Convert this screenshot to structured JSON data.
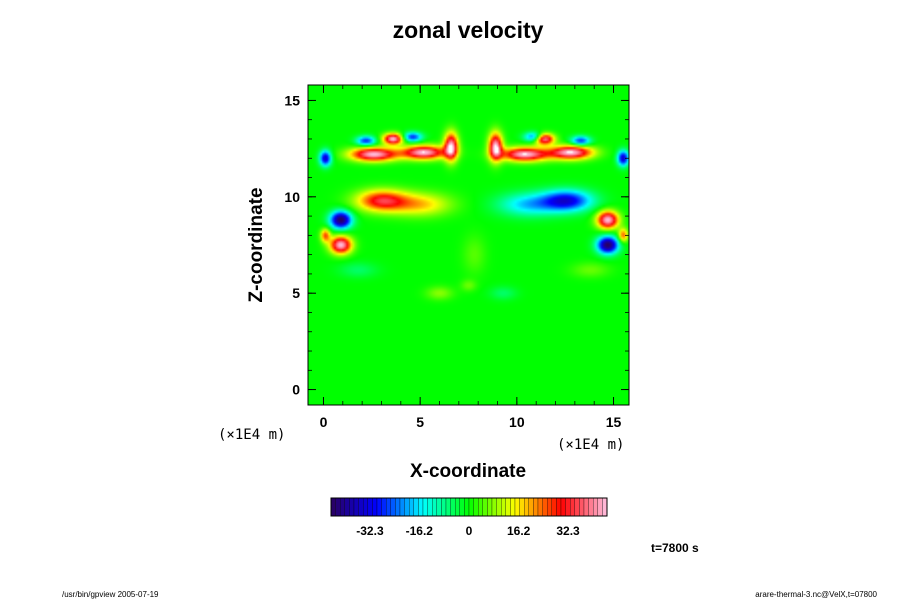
{
  "chart_data": {
    "type": "heatmap",
    "title": "zonal velocity",
    "xlabel": "X-coordinate",
    "ylabel": "Z-coordinate",
    "x_unit_lower": "(×1E4 m)",
    "x_unit_upper": "(×1E4 m)",
    "xlim": [
      -0.8,
      15.8
    ],
    "ylim": [
      -0.8,
      15.8
    ],
    "xticks": [
      0,
      5,
      10,
      15
    ],
    "yticks": [
      0,
      5,
      10,
      15
    ],
    "xtick_labels": [
      "0",
      "5",
      "10",
      "15"
    ],
    "ytick_labels": [
      "0",
      "5",
      "10",
      "15"
    ],
    "background_value": 0,
    "features": [
      {
        "x": 3.0,
        "z": 9.8,
        "value": 32,
        "sx": 1.3,
        "sz": 0.55
      },
      {
        "x": 5.0,
        "z": 9.6,
        "value": 18,
        "sx": 1.6,
        "sz": 0.6
      },
      {
        "x": 12.6,
        "z": 9.8,
        "value": -32,
        "sx": 1.3,
        "sz": 0.55
      },
      {
        "x": 10.6,
        "z": 9.6,
        "value": -18,
        "sx": 1.6,
        "sz": 0.6
      },
      {
        "x": 0.9,
        "z": 8.8,
        "value": -45,
        "sx": 0.55,
        "sz": 0.45
      },
      {
        "x": 0.9,
        "z": 7.5,
        "value": 45,
        "sx": 0.55,
        "sz": 0.45
      },
      {
        "x": 14.7,
        "z": 8.8,
        "value": 45,
        "sx": 0.55,
        "sz": 0.45
      },
      {
        "x": 14.7,
        "z": 7.5,
        "value": -45,
        "sx": 0.55,
        "sz": 0.45
      },
      {
        "x": 2.6,
        "z": 12.2,
        "value": 45,
        "sx": 1.2,
        "sz": 0.35
      },
      {
        "x": 5.2,
        "z": 12.3,
        "value": 45,
        "sx": 1.1,
        "sz": 0.35
      },
      {
        "x": 3.6,
        "z": 13.0,
        "value": 45,
        "sx": 0.5,
        "sz": 0.28
      },
      {
        "x": 6.6,
        "z": 12.6,
        "value": 45,
        "sx": 0.35,
        "sz": 0.7
      },
      {
        "x": 2.2,
        "z": 12.9,
        "value": -28,
        "sx": 0.5,
        "sz": 0.25
      },
      {
        "x": 4.6,
        "z": 13.1,
        "value": -28,
        "sx": 0.5,
        "sz": 0.25
      },
      {
        "x": 10.4,
        "z": 12.2,
        "value": 45,
        "sx": 1.2,
        "sz": 0.35
      },
      {
        "x": 12.8,
        "z": 12.3,
        "value": 45,
        "sx": 1.1,
        "sz": 0.35
      },
      {
        "x": 11.4,
        "z": 13.0,
        "value": 45,
        "sx": 0.5,
        "sz": 0.28
      },
      {
        "x": 8.9,
        "z": 12.6,
        "value": 45,
        "sx": 0.35,
        "sz": 0.7
      },
      {
        "x": 10.9,
        "z": 13.1,
        "value": -28,
        "sx": 0.5,
        "sz": 0.25
      },
      {
        "x": 13.3,
        "z": 12.9,
        "value": -28,
        "sx": 0.5,
        "sz": 0.25
      },
      {
        "x": 0.1,
        "z": 12.0,
        "value": -35,
        "sx": 0.3,
        "sz": 0.4
      },
      {
        "x": 15.5,
        "z": 12.0,
        "value": -35,
        "sx": 0.3,
        "sz": 0.4
      },
      {
        "x": 0.1,
        "z": 8.0,
        "value": 25,
        "sx": 0.25,
        "sz": 0.35
      },
      {
        "x": 15.5,
        "z": 8.0,
        "value": 25,
        "sx": 0.25,
        "sz": 0.35
      },
      {
        "x": 6.0,
        "z": 5.0,
        "value": 8,
        "sx": 0.7,
        "sz": 0.35
      },
      {
        "x": 7.5,
        "z": 5.4,
        "value": 6,
        "sx": 0.4,
        "sz": 0.3
      },
      {
        "x": 9.3,
        "z": 5.0,
        "value": -6,
        "sx": 0.7,
        "sz": 0.35
      },
      {
        "x": 1.8,
        "z": 6.2,
        "value": -6,
        "sx": 1.0,
        "sz": 0.4
      },
      {
        "x": 13.8,
        "z": 6.2,
        "value": 6,
        "sx": 1.0,
        "sz": 0.4
      },
      {
        "x": 7.8,
        "z": 7.0,
        "value": 5,
        "sx": 0.6,
        "sz": 1.0
      }
    ],
    "colorbar": {
      "min": -45,
      "max": 45,
      "ticks": [
        -32.3,
        -16.2,
        0,
        16.2,
        32.3
      ],
      "tick_labels": [
        "-32.3",
        "-16.2",
        "0",
        "16.2",
        "32.3"
      ],
      "stops": [
        "#2a0060",
        "#0000ff",
        "#00ffff",
        "#00ff00",
        "#ffff00",
        "#ff0000",
        "#ffc0e0"
      ]
    }
  },
  "annotations": {
    "time": "t=7800 s",
    "footer_left": "/usr/bin/gpview 2005-07-19",
    "footer_right": "arare-thermal-3.nc@VelX,t=07800"
  }
}
